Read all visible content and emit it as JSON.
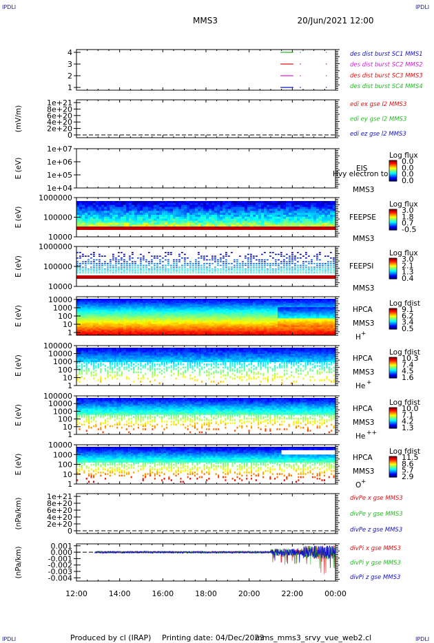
{
  "header": {
    "corner_left_top": "IPDLI",
    "corner_right_top": "IPDLI",
    "corner_left_bottom": "IPDLI",
    "corner_right_bottom": "IPDLI",
    "title": "MMS3",
    "datetime": "20/Jun/2021 12:00"
  },
  "footer": {
    "produced": "Produced by cl (IRAP)",
    "printing": "Printing date: 04/Dec/2023",
    "file": "mms_mms3_srvy_vue_web2.cl"
  },
  "colors": {
    "mms1": "#22b822",
    "mms2": "#dd22dd",
    "mms3": "#dd1111",
    "mms4": "#1111cc",
    "leg_blue": "#1111cc",
    "leg_magenta": "#cc22cc",
    "leg_red": "#dd1111",
    "leg_green": "#22bb22"
  },
  "chart_data": [
    {
      "type": "line",
      "name": "burst",
      "yticks": [
        "4",
        "3",
        "2",
        "1"
      ],
      "legend": [
        {
          "text": "des dist burst SC1 MMS1",
          "color": "#1111cc"
        },
        {
          "text": "des dist burst SC2 MMS2",
          "color": "#cc22cc"
        },
        {
          "text": "des dist burst SC3 MMS3",
          "color": "#dd1111"
        },
        {
          "text": "des dist burst SC4 MMS4",
          "color": "#22bb22"
        }
      ],
      "segments": [
        {
          "sc": 4,
          "from": 21.45,
          "to": 22.05,
          "color": "#22b822"
        },
        {
          "sc": 4,
          "from": 22.35,
          "to": 22.4,
          "color": "#22b822"
        },
        {
          "sc": 4,
          "from": 23.55,
          "to": 23.6,
          "color": "#22b822"
        },
        {
          "sc": 3,
          "from": 21.45,
          "to": 22.05,
          "color": "#dd1111"
        },
        {
          "sc": 3,
          "from": 22.35,
          "to": 22.4,
          "color": "#dd1111"
        },
        {
          "sc": 3,
          "from": 23.55,
          "to": 23.6,
          "color": "#dd1111"
        },
        {
          "sc": 2,
          "from": 21.45,
          "to": 22.05,
          "color": "#dd22dd"
        },
        {
          "sc": 2,
          "from": 22.35,
          "to": 22.4,
          "color": "#dd22dd"
        },
        {
          "sc": 2,
          "from": 23.55,
          "to": 23.6,
          "color": "#dd22dd"
        },
        {
          "sc": 1,
          "from": 21.45,
          "to": 22.05,
          "color": "#1111cc"
        },
        {
          "sc": 1,
          "from": 22.35,
          "to": 22.4,
          "color": "#1111cc"
        },
        {
          "sc": 1,
          "from": 23.55,
          "to": 23.6,
          "color": "#1111cc"
        }
      ]
    },
    {
      "type": "line",
      "name": "edi",
      "ylabel": "(mV/m)",
      "yticks": [
        "1e+21",
        "8e+20",
        "6e+20",
        "4e+20",
        "2e+20",
        "0"
      ],
      "legend": [
        {
          "text": "edi ex gse l2 MMS3",
          "color": "#dd1111"
        },
        {
          "text": "edi ey gse l2 MMS3",
          "color": "#22bb22"
        },
        {
          "text": "edi ez gse l2 MMS3",
          "color": "#1111cc"
        }
      ]
    },
    {
      "type": "heatmap",
      "name": "eis",
      "ylabel": "E (eV)",
      "yticks": [
        "1e+07",
        "1e+06",
        "1e+05",
        "1e+04"
      ],
      "cb_title": "Log flux",
      "cb_ticks": [
        "0.0",
        "0.0",
        "0.0",
        "0.0"
      ],
      "inst": "EIS",
      "sc": "MMS3",
      "overlay": "Hvy electron to"
    },
    {
      "type": "heatmap",
      "name": "feeps_e",
      "ylabel": "E (eV)",
      "yticks": [
        "1000000",
        "100000",
        "10000"
      ],
      "cb_title": "Log flux",
      "cb_ticks": [
        "3.0",
        "1.8",
        "0.7",
        "-0.5"
      ],
      "inst": "FEEPSE",
      "sc": "MMS3"
    },
    {
      "type": "heatmap",
      "name": "feeps_i",
      "ylabel": "E (eV)",
      "yticks": [
        "1000000",
        "100000",
        "10000"
      ],
      "cb_title": "Log flux",
      "cb_ticks": [
        "3.0",
        "2.1",
        "1.3",
        "0.4"
      ],
      "inst": "FEEPSI",
      "sc": "MMS3"
    },
    {
      "type": "heatmap",
      "name": "hpca_h",
      "ylabel": "E (eV)",
      "yticks": [
        "10000",
        "1000",
        "100",
        "10",
        "1"
      ],
      "cb_title": "Log fdist",
      "cb_ticks": [
        "9.1",
        "6.2",
        "3.4",
        "0.5"
      ],
      "inst": "HPCA",
      "sc": "MMS3",
      "species": "H",
      "charge": "+"
    },
    {
      "type": "heatmap",
      "name": "hpca_he1",
      "ylabel": "E (eV)",
      "yticks": [
        "100000",
        "10000",
        "1000",
        "100",
        "10",
        "1"
      ],
      "cb_title": "Log fdist",
      "cb_ticks": [
        "10.3",
        "7.4",
        "4.5",
        "1.6"
      ],
      "inst": "HPCA",
      "sc": "MMS3",
      "species": "He",
      "charge": "+"
    },
    {
      "type": "heatmap",
      "name": "hpca_he2",
      "ylabel": "E (eV)",
      "yticks": [
        "100000",
        "10000",
        "1000",
        "100",
        "10",
        "1"
      ],
      "cb_title": "Log fdist",
      "cb_ticks": [
        "10.0",
        "7.1",
        "4.2",
        "1.3"
      ],
      "inst": "HPCA",
      "sc": "MMS3",
      "species": "He",
      "charge": "++"
    },
    {
      "type": "heatmap",
      "name": "hpca_o",
      "ylabel": "E (eV)",
      "yticks": [
        "10000",
        "1000",
        "100",
        "10",
        "1"
      ],
      "cb_title": "Log fdist",
      "cb_ticks": [
        "11.5",
        "8.6",
        "5.7",
        "2.9"
      ],
      "inst": "HPCA",
      "sc": "MMS3",
      "species": "O",
      "charge": "+"
    },
    {
      "type": "line",
      "name": "divpe",
      "ylabel": "(nPa/km)",
      "yticks": [
        "1e+21",
        "8e+20",
        "6e+20",
        "4e+20",
        "2e+20",
        "0"
      ],
      "legend": [
        {
          "text": "divPe x gse MMS3",
          "color": "#dd1111"
        },
        {
          "text": "divPe y gse MMS3",
          "color": "#22bb22"
        },
        {
          "text": "divPe z gse MMS3",
          "color": "#1111cc"
        }
      ]
    },
    {
      "type": "line",
      "name": "divpi",
      "ylabel": "(nPa/km)",
      "yticks": [
        "0.001",
        "0.000",
        "-0.001",
        "-0.002",
        "-0.003",
        "-0.004"
      ],
      "ylim": [
        -0.0045,
        0.0013
      ],
      "legend": [
        {
          "text": "divPi x gse MMS3",
          "color": "#dd1111"
        },
        {
          "text": "divPi y gse MMS3",
          "color": "#22bb22"
        },
        {
          "text": "divPi z gse MMS3",
          "color": "#1111cc"
        }
      ]
    }
  ],
  "xaxis": {
    "ticks": [
      "12:00",
      "14:00",
      "16:00",
      "18:00",
      "20:00",
      "22:00",
      "00:00"
    ],
    "range_hours": [
      12,
      24
    ]
  }
}
